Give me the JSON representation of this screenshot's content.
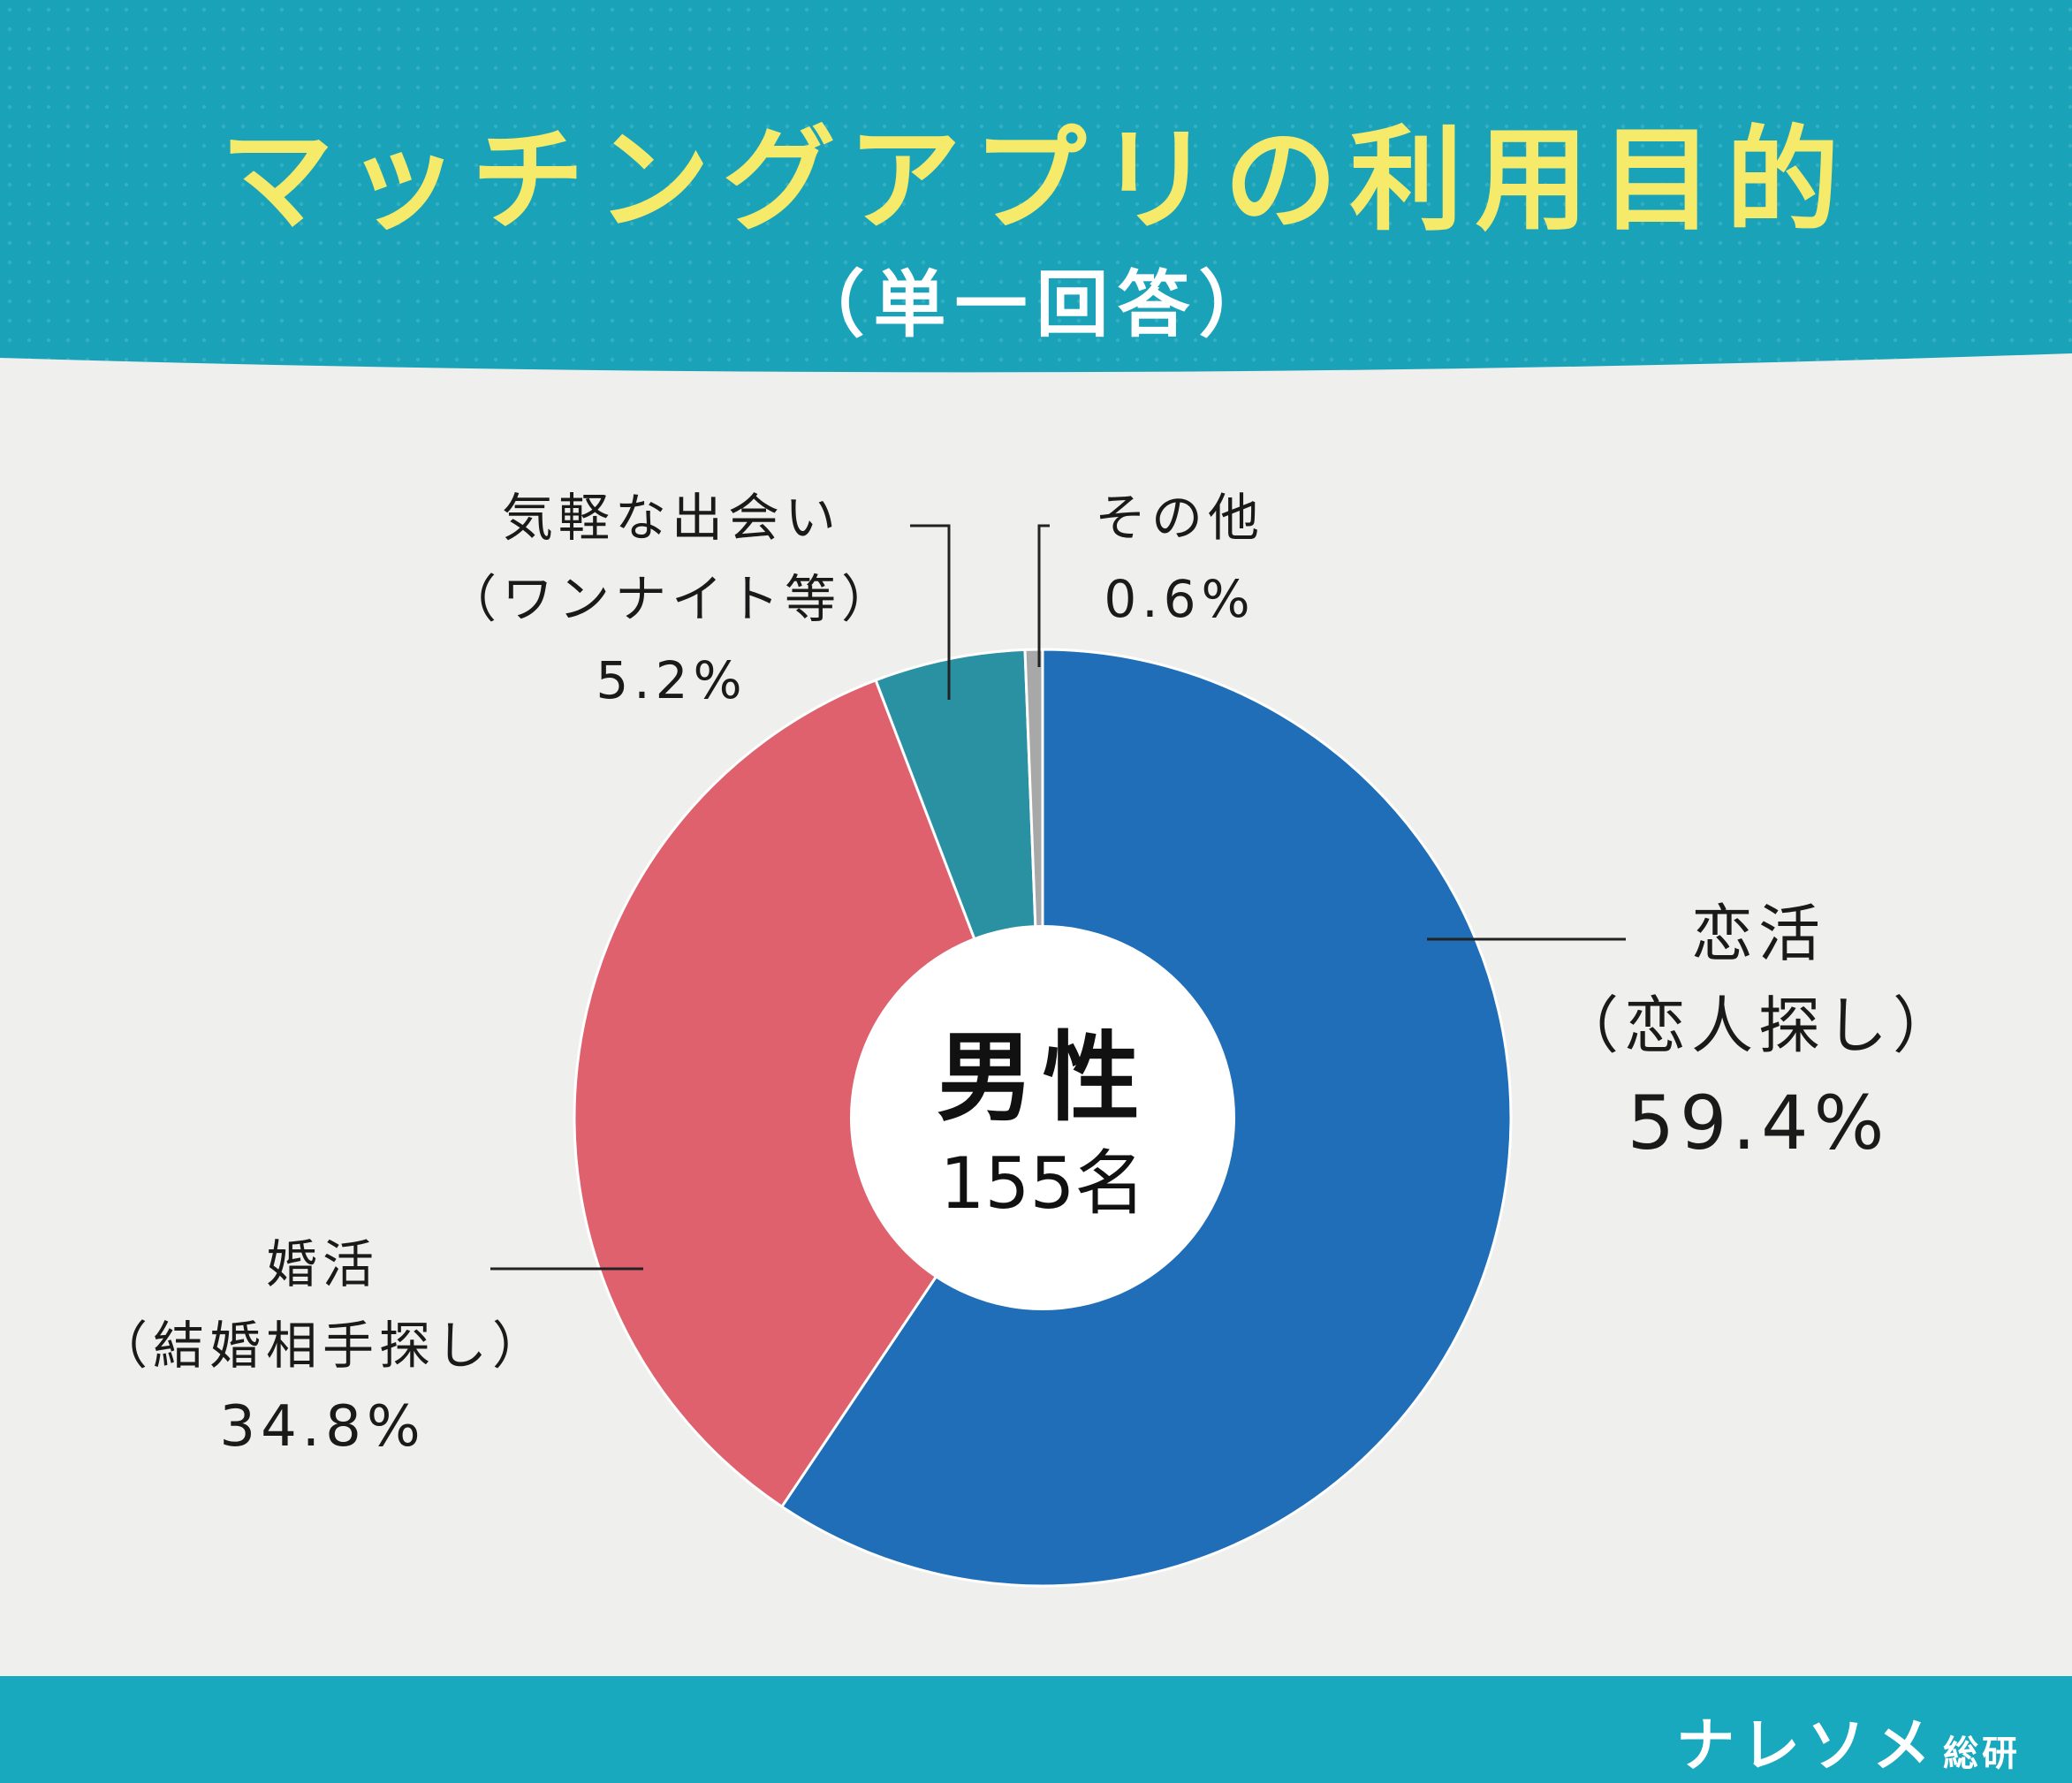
{
  "header": {
    "title": "マッチングアプリの利用目的",
    "subtitle": "（単一回答）"
  },
  "colors": {
    "header_bg": "#1aa3b8",
    "title": "#f6ea6b",
    "footer_bg": "#19a9bf",
    "page_bg": "#efefed"
  },
  "chart_data": {
    "type": "pie",
    "center_label": "男性",
    "center_sublabel": "155名",
    "slices": [
      {
        "label_line1": "恋活",
        "label_line2": "（恋人探し）",
        "value": 59.4,
        "value_label": "59.4%",
        "color": "#1f6eb7"
      },
      {
        "label_line1": "婚活",
        "label_line2": "（結婚相手探し）",
        "value": 34.8,
        "value_label": "34.8%",
        "color": "#de616d"
      },
      {
        "label_line1": "気軽な出会い",
        "label_line2": "（ワンナイト等）",
        "value": 5.2,
        "value_label": "5.2%",
        "color": "#2a91a3"
      },
      {
        "label_line1": "その他",
        "label_line2": "",
        "value": 0.6,
        "value_label": "0.6%",
        "color": "#a8a8a8"
      }
    ]
  },
  "footer": {
    "brand": "ナレソメ",
    "brand_sub": "総研"
  }
}
